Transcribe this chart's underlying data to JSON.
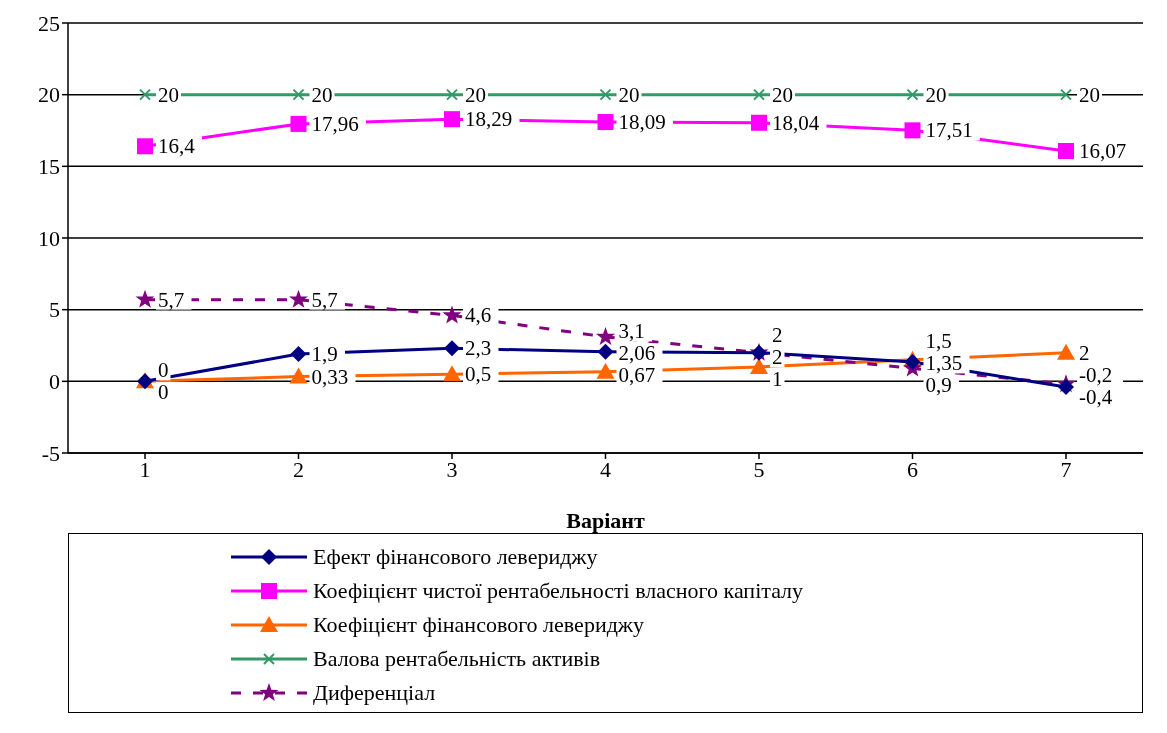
{
  "chart_data": {
    "type": "line",
    "xlabel": "Варіант",
    "categories": [
      "1",
      "2",
      "3",
      "4",
      "5",
      "6",
      "7"
    ],
    "ylim": [
      -5,
      25
    ],
    "yticks": [
      -5,
      0,
      5,
      10,
      15,
      20,
      25
    ],
    "grid": "y",
    "legend": "bottom",
    "series": [
      {
        "name": "Ефект фінансового левериджу",
        "color": "#000080",
        "marker": "diamond",
        "line_style": "solid",
        "values": [
          0,
          1.9,
          2.3,
          2.06,
          2,
          1.35,
          -0.4
        ],
        "value_labels": [
          "0",
          "1,9",
          "2,3",
          "2,06",
          "2",
          "1,35",
          "-0,4"
        ]
      },
      {
        "name": "Коефіцієнт чистої рентабельності власного капіталу",
        "color": "#ff00ff",
        "marker": "square",
        "line_style": "solid",
        "values": [
          16.4,
          17.96,
          18.29,
          18.09,
          18.04,
          17.51,
          16.07
        ],
        "value_labels": [
          "16,4",
          "17,96",
          "18,29",
          "18,09",
          "18,04",
          "17,51",
          "16,07"
        ]
      },
      {
        "name": "Коефіцієнт фінансового левериджу",
        "color": "#ff6600",
        "marker": "triangle",
        "line_style": "solid",
        "values": [
          0,
          0.33,
          0.5,
          0.67,
          1,
          1.5,
          2
        ],
        "value_labels": [
          "0",
          "0,33",
          "0,5",
          "0,67",
          "1",
          "1,5",
          "2"
        ]
      },
      {
        "name": "Валова рентабельність активів",
        "color": "#339966",
        "marker": "cross",
        "line_style": "solid",
        "values": [
          20,
          20,
          20,
          20,
          20,
          20,
          20
        ],
        "value_labels": [
          "20",
          "20",
          "20",
          "20",
          "20",
          "20",
          "20"
        ]
      },
      {
        "name": "Диференціал",
        "color": "#800080",
        "marker": "star",
        "line_style": "dashed",
        "values": [
          5.7,
          5.7,
          4.6,
          3.1,
          2,
          0.9,
          -0.2
        ],
        "value_labels": [
          "5,7",
          "5,7",
          "4,6",
          "3,1",
          "2",
          "0,9",
          "-0,2"
        ]
      }
    ]
  }
}
